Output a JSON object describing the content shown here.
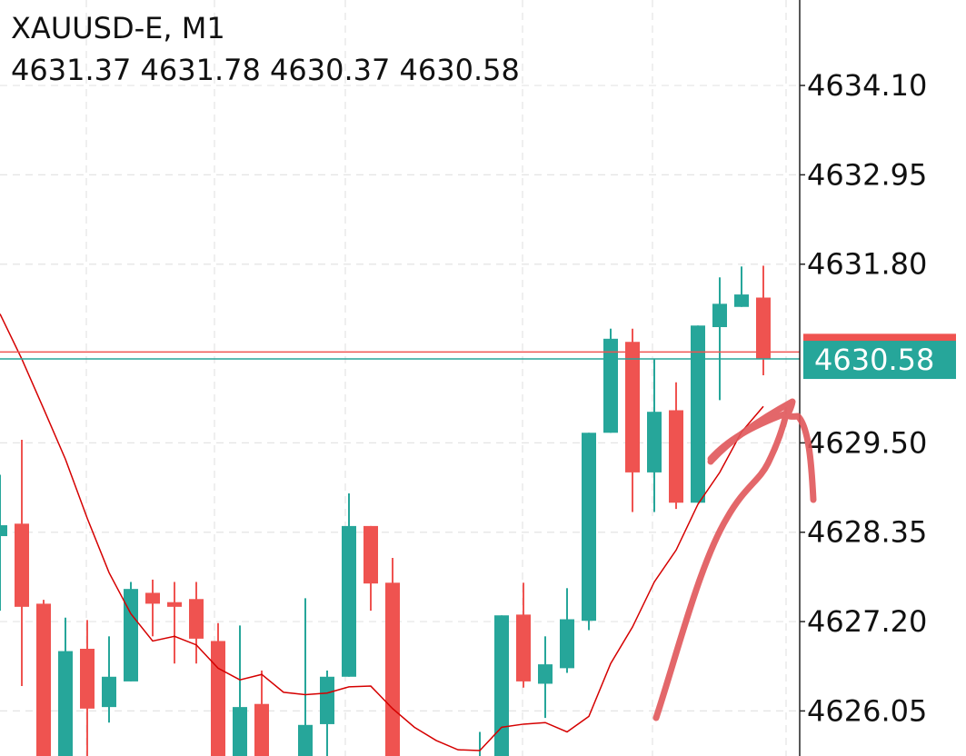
{
  "chart_data": {
    "type": "candlestick",
    "title": "XAUUSD-E, M1",
    "up_color": "#26a69a",
    "down_color": "#ef5350",
    "open": [
      4628.3,
      4628.46,
      4627.43,
      4625.3,
      4626.85,
      4626.1,
      4626.43,
      4627.57,
      4627.45,
      4627.49,
      4626.95,
      4625.3,
      4626.14,
      null,
      4625.3,
      4625.88,
      4626.49,
      4628.43,
      4627.7,
      null,
      null,
      null,
      4625.3,
      4625.3,
      4627.29,
      4626.4,
      4626.6,
      4627.21,
      4629.63,
      4630.8,
      4629.12,
      4629.92,
      4628.73,
      4630.99,
      4631.25,
      4631.37
    ],
    "high": [
      4629.09,
      4629.54,
      4627.48,
      4627.25,
      4627.22,
      4627.01,
      4627.71,
      4627.74,
      4627.71,
      4627.71,
      4627.18,
      4627.15,
      4626.57,
      null,
      4627.5,
      4626.57,
      4628.85,
      4628.43,
      4628.02,
      null,
      null,
      null,
      4625.78,
      4627.28,
      4627.7,
      4627.01,
      4627.63,
      4629.63,
      4630.97,
      4630.97,
      4630.58,
      4630.28,
      4631.01,
      4631.63,
      4631.77,
      4631.78
    ],
    "low": [
      4627.34,
      4626.37,
      4625.3,
      4625.3,
      4625.3,
      4625.9,
      4626.43,
      4627.01,
      4626.66,
      4626.66,
      4625.3,
      4625.3,
      4625.3,
      null,
      4625.3,
      4625.3,
      4626.49,
      4627.34,
      4625.3,
      null,
      null,
      null,
      4625.3,
      4625.3,
      4626.35,
      4625.96,
      4626.54,
      4627.09,
      4629.63,
      4628.61,
      4628.61,
      4628.65,
      4628.73,
      4630.05,
      4631.25,
      4630.37
    ],
    "close": [
      4628.44,
      4627.39,
      4625.3,
      4626.82,
      4626.08,
      4626.49,
      4627.62,
      4627.43,
      4627.39,
      4626.98,
      4625.3,
      4626.1,
      4625.3,
      null,
      4625.87,
      4626.49,
      4628.43,
      4627.69,
      4625.3,
      null,
      null,
      null,
      4625.3,
      4627.28,
      4626.43,
      4626.65,
      4627.23,
      4629.63,
      4630.84,
      4629.12,
      4629.9,
      4628.73,
      4631.01,
      4631.29,
      4631.41,
      4630.58
    ],
    "ma": {
      "color": "#d50000",
      "values": [
        4631.16,
        4630.58,
        4629.94,
        4629.29,
        4628.53,
        4627.83,
        4627.3,
        4626.95,
        4627.01,
        4626.9,
        4626.6,
        4626.45,
        4626.52,
        4626.29,
        4626.26,
        4626.28,
        4626.36,
        4626.37,
        4626.08,
        4625.84,
        4625.67,
        4625.55,
        4625.54,
        4625.84,
        4625.88,
        4625.9,
        4625.78,
        4625.98,
        4626.66,
        4627.13,
        4627.71,
        4628.12,
        4628.71,
        4629.12,
        4629.64,
        4629.97
      ]
    },
    "last_price": 4630.58,
    "last_price_color": "#26a69a",
    "ask_price": 4630.67,
    "ask_color": "#ef5350",
    "ylim": [
      4625.47,
      4635.2
    ],
    "yticks": [
      {
        "value": 4634.1,
        "label": "4634.10"
      },
      4632.95,
      {
        "value": 4631.8,
        "label": "4631.80"
      },
      {
        "value": 4629.5,
        "label": "4629.50"
      },
      4628.35,
      {
        "value": 4627.2,
        "label": "4627.20"
      },
      4626.05
    ],
    "grid": true
  }
}
